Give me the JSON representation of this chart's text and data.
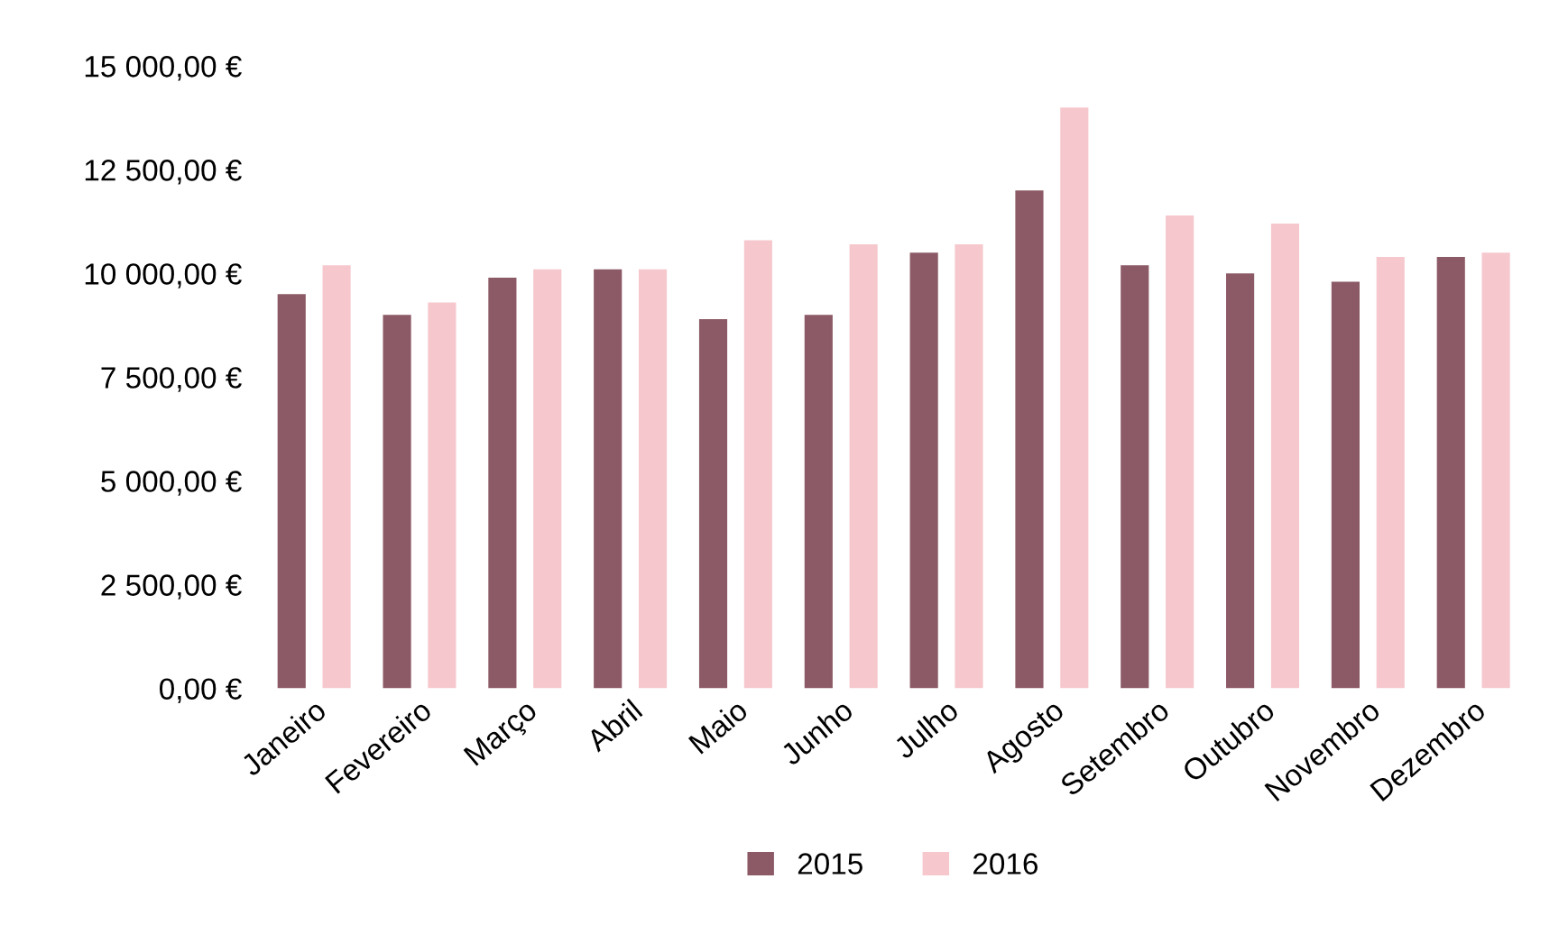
{
  "chart_data": {
    "type": "bar",
    "categories": [
      "Janeiro",
      "Fevereiro",
      "Março",
      "Abril",
      "Maio",
      "Junho",
      "Julho",
      "Agosto",
      "Setembro",
      "Outubro",
      "Novembro",
      "Dezembro"
    ],
    "series": [
      {
        "name": "2015",
        "color": "#8c5a66",
        "values": [
          9500,
          9000,
          9900,
          10100,
          8900,
          9000,
          10500,
          12000,
          10200,
          10000,
          9800,
          10400
        ]
      },
      {
        "name": "2016",
        "color": "#f6c8cd",
        "values": [
          10200,
          9300,
          10100,
          10100,
          10800,
          10700,
          10700,
          14000,
          11400,
          11200,
          10400,
          10500
        ]
      }
    ],
    "ylim": [
      0,
      15000
    ],
    "yticks": [
      {
        "value": 0,
        "label": "0,00 €"
      },
      {
        "value": 2500,
        "label": "2 500,00 €"
      },
      {
        "value": 5000,
        "label": "5 000,00 €"
      },
      {
        "value": 7500,
        "label": "7 500,00 €"
      },
      {
        "value": 10000,
        "label": "10 000,00 €"
      },
      {
        "value": 12500,
        "label": "12 500,00 €"
      },
      {
        "value": 15000,
        "label": "15 000,00 €"
      }
    ],
    "grid": false,
    "legend": "bottom"
  }
}
